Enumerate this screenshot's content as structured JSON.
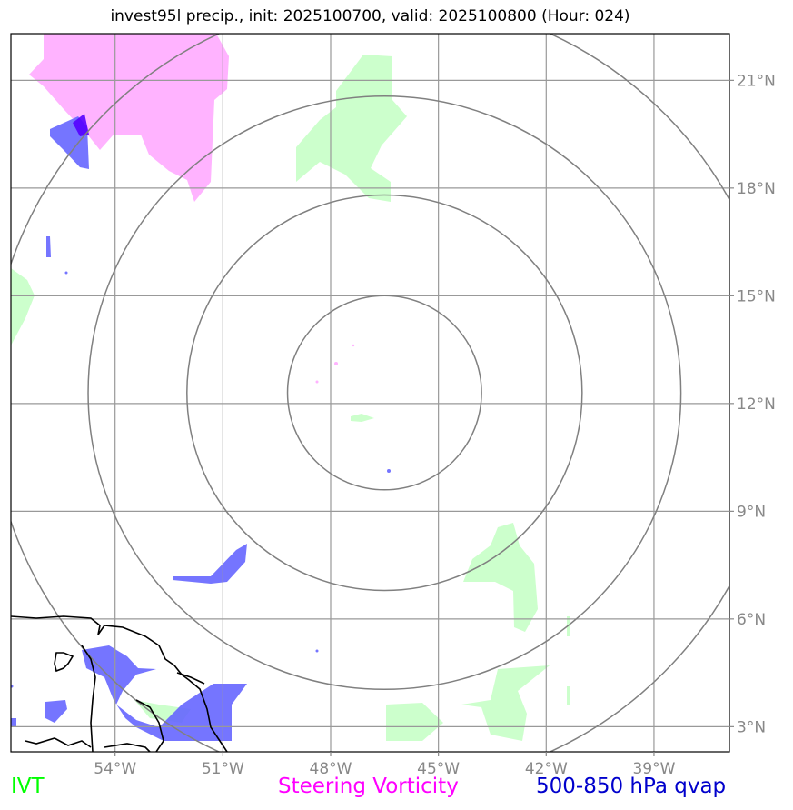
{
  "title": "invest95l precip., init: 2025100700, valid: 2025100800 (Hour: 024)",
  "lat_labels": [
    "21°N",
    "18°N",
    "15°N",
    "12°N",
    "9°N",
    "6°N",
    "3°N"
  ],
  "lon_labels": [
    "54°W",
    "51°W",
    "48°W",
    "45°W",
    "42°W",
    "39°W"
  ],
  "lat_values": [
    21,
    18,
    15,
    12,
    9,
    6,
    3
  ],
  "lon_values": [
    -54,
    -51,
    -48,
    -45,
    -42,
    -39
  ],
  "map_extent": {
    "lon_min": -56.9,
    "lon_max": -36.9,
    "lat_min": 2.3,
    "lat_max": 22.3
  },
  "center": {
    "lon": -46.5,
    "lat": 12.3
  },
  "ring_radii_deg": [
    2.7,
    5.5,
    8.25,
    11.0
  ],
  "legend": [
    {
      "label": "IVT",
      "color": "#00ff00"
    },
    {
      "label": "Steering Vorticity",
      "color": "#ff00ff"
    },
    {
      "label": "500-850 hPa qvap",
      "color": "#0000cc"
    }
  ],
  "colors": {
    "ivt_fill": "#ccffcc",
    "vorticity_fill": "#ffb3ff",
    "qvap_fill": "#6666ff",
    "qvap_dark": "#5500ff",
    "grid": "#999999",
    "rings": "#808080",
    "coast": "#000000"
  }
}
